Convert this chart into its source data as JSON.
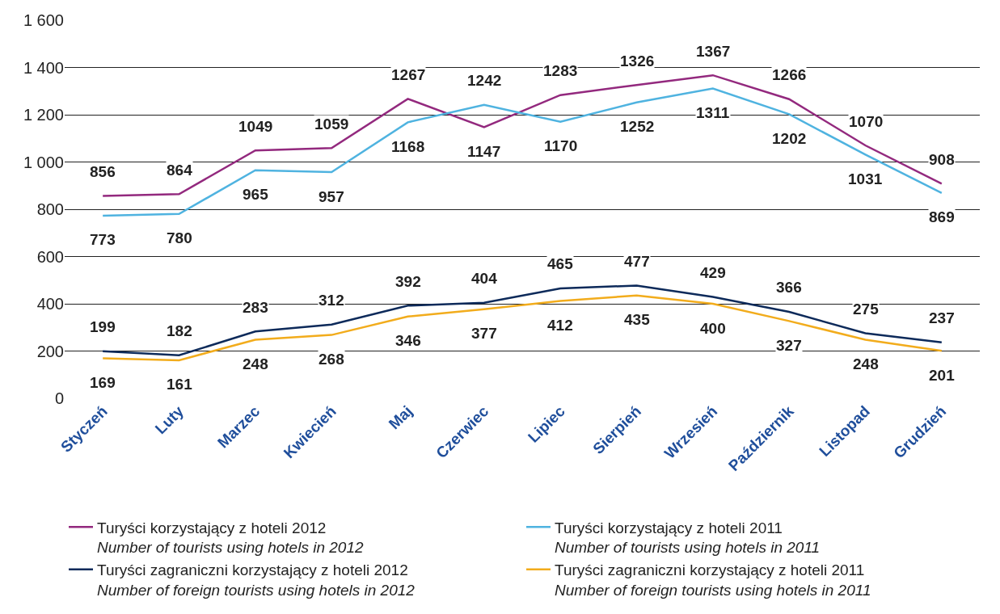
{
  "chart_data": {
    "type": "line",
    "categories": [
      "Styczeń",
      "Luty",
      "Marzec",
      "Kwiecień",
      "Maj",
      "Czerwiec",
      "Lipiec",
      "Sierpień",
      "Wrzesień",
      "Październik",
      "Listopad",
      "Grudzień"
    ],
    "series": [
      {
        "name": "Turyści korzystający z hoteli 2012\nNumber of tourists using hotels in 2012",
        "color": "#93297e",
        "values": [
          856,
          864,
          1049,
          1059,
          1267,
          1147,
          1283,
          1326,
          1367,
          1266,
          1070,
          908
        ]
      },
      {
        "name": "Turyści korzystający z hoteli 2011\nNumber of tourists using hotels in 2011",
        "color": "#4fb3e0",
        "values": [
          773,
          780,
          965,
          957,
          1168,
          1242,
          1170,
          1252,
          1311,
          1202,
          1031,
          869
        ]
      },
      {
        "name": "Turyści zagraniczni korzystający z hoteli 2012\nNumber of foreign tourists using hotels in 2012",
        "color": "#0d2a5a",
        "values": [
          199,
          182,
          283,
          312,
          392,
          404,
          465,
          477,
          429,
          366,
          275,
          237
        ]
      },
      {
        "name": "Turyści zagraniczni korzystający z hoteli 2011\nNumber of foreign tourists using hotels in 2011",
        "color": "#f2ac1c",
        "values": [
          169,
          161,
          248,
          268,
          346,
          377,
          412,
          435,
          400,
          327,
          248,
          201
        ]
      }
    ],
    "ylim": [
      0,
      1600
    ],
    "yticks": [
      0,
      200,
      400,
      600,
      800,
      {
        "value": 1000,
        "label": "1 000"
      },
      {
        "value": 1200,
        "label": "1 200"
      },
      {
        "value": 1400,
        "label": "1 400"
      },
      {
        "value": 1600,
        "label": "1 600"
      }
    ],
    "grid": "y",
    "legend": "bottom",
    "marker": "none",
    "line_style": "solid",
    "data_labels": true
  }
}
